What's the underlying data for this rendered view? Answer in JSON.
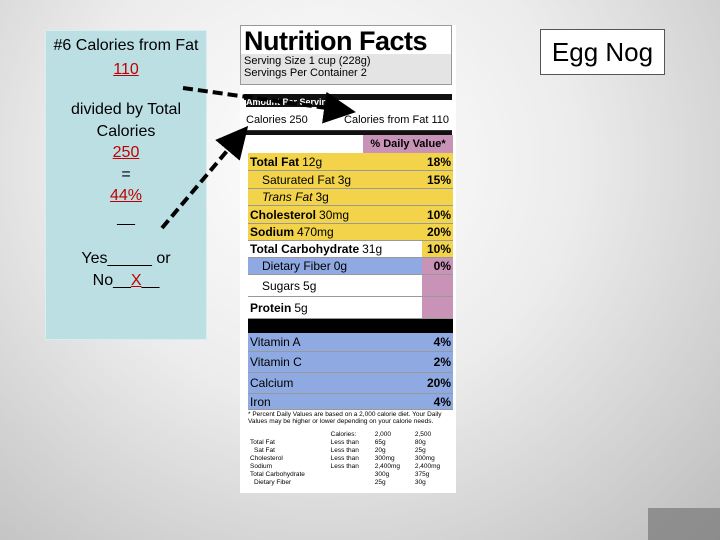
{
  "slide": {
    "question": "#6 Calories from Fat",
    "fat_calories": "110",
    "divided": "divided by Total Calories",
    "total_calories": "250",
    "equals": "=",
    "percent": "44%",
    "blank": "__",
    "answer_prefix": "Yes_____ or No__",
    "answer": "X",
    "answer_suffix": "__",
    "product": "Egg Nog"
  },
  "label": {
    "title": "Nutrition Facts",
    "serving_size": "Serving Size 1 cup (228g)",
    "servings": "Servings Per Container 2",
    "amount": "Amount Per Serving",
    "calories": "Calories 250",
    "calories_from_fat": "Calories from Fat 110",
    "dv_header": "% Daily Value*",
    "rows": [
      {
        "name": "Total Fat",
        "amount": "12g",
        "dv": "18%",
        "bold": true,
        "color": "#f3d34a",
        "dv_color": "#f3d34a"
      },
      {
        "name": "Saturated Fat",
        "amount": "3g",
        "dv": "15%",
        "indent": true,
        "color": "#f3d34a",
        "dv_color": "#f3d34a"
      },
      {
        "name": "Trans Fat",
        "amount": "3g",
        "indent": true,
        "italic": true,
        "color": "#f3d34a",
        "dv_color": "#f3d34a"
      },
      {
        "name": "Cholesterol",
        "amount": "30mg",
        "dv": "10%",
        "bold": true,
        "color": "#f3d34a",
        "dv_color": "#f3d34a"
      },
      {
        "name": "Sodium",
        "amount": "470mg",
        "dv": "20%",
        "bold": true,
        "color": "#f3d34a",
        "dv_color": "#f3d34a"
      },
      {
        "name": "Total Carbohydrate",
        "amount": "31g",
        "dv": "10%",
        "bold": true,
        "color": "#ffffff",
        "dv_color": "#f3d34a"
      },
      {
        "name": "Dietary Fiber",
        "amount": "0g",
        "dv": "0%",
        "indent": true,
        "color": "#8fa9e3",
        "dv_color": "#c993b8"
      },
      {
        "name": "Sugars",
        "amount": "5g",
        "indent": true,
        "color": "#ffffff",
        "dv_color": "#c993b8"
      },
      {
        "name": "Protein",
        "amount": "5g",
        "bold": true,
        "color": "#ffffff",
        "dv_color": "#c993b8"
      },
      {
        "name": "Vitamin A",
        "dv": "4%",
        "color": "#8fa9e3",
        "dv_color": "#8fa9e3"
      },
      {
        "name": "Vitamin C",
        "dv": "2%",
        "color": "#8fa9e3",
        "dv_color": "#8fa9e3"
      },
      {
        "name": "Calcium",
        "dv": "20%",
        "color": "#8fa9e3",
        "dv_color": "#8fa9e3"
      },
      {
        "name": "Iron",
        "dv": "4%",
        "color": "#8fa9e3",
        "dv_color": "#8fa9e3"
      }
    ],
    "footnote": "* Percent Daily Values are based on a 2,000 calorie diet. Your Daily Values may be higher or lower depending on your calorie needs.",
    "table_header": {
      "calories": "Calories:",
      "v2000": "2,000",
      "v2500": "2,500"
    },
    "table_rows": [
      {
        "name": "Total Fat",
        "limit": "Less than",
        "v2000": "65g",
        "v2500": "80g"
      },
      {
        "name": "Sat Fat",
        "limit": "Less than",
        "v2000": "20g",
        "v2500": "25g"
      },
      {
        "name": "Cholesterol",
        "limit": "Less than",
        "v2000": "300mg",
        "v2500": "300mg"
      },
      {
        "name": "Sodium",
        "limit": "Less than",
        "v2000": "2,400mg",
        "v2500": "2,400mg"
      },
      {
        "name": "Total Carbohydrate",
        "v2000": "300g",
        "v2500": "375g"
      },
      {
        "name": "Dietary Fiber",
        "v2000": "25g",
        "v2500": "30g"
      }
    ]
  }
}
